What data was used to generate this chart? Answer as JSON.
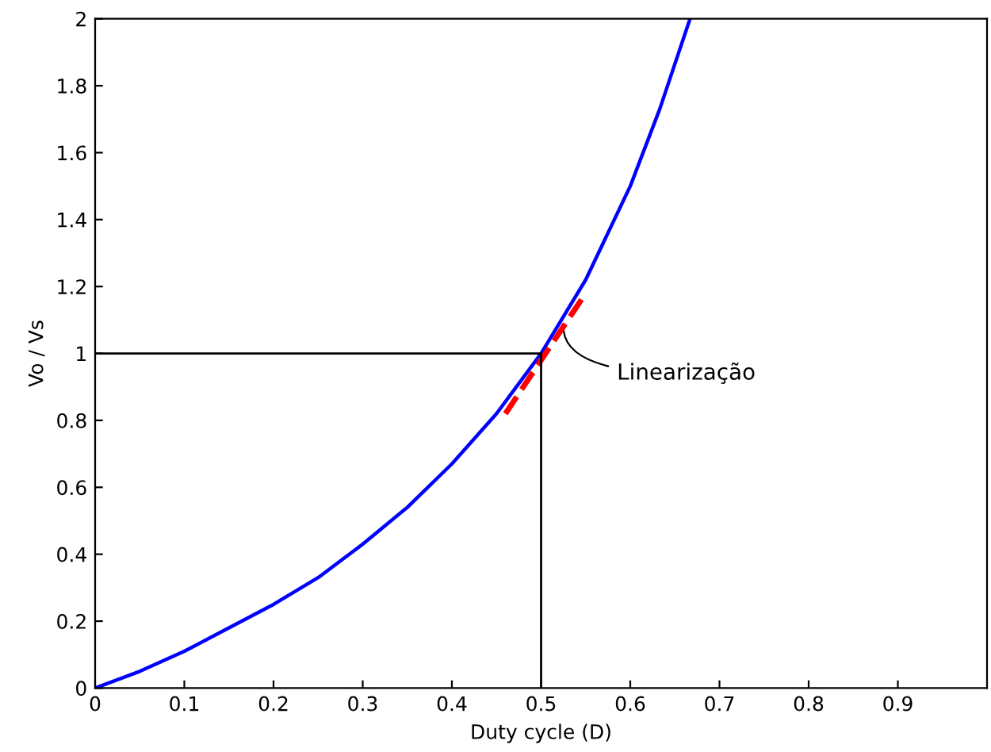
{
  "chart_data": {
    "type": "line",
    "xlabel": "Duty cycle (D)",
    "ylabel": "Vo / Vs",
    "xlim": [
      0,
      1
    ],
    "ylim": [
      0,
      2
    ],
    "xticks": [
      0,
      0.1,
      0.2,
      0.3,
      0.4,
      0.5,
      0.6,
      0.7,
      0.8,
      0.9
    ],
    "yticks": [
      0,
      0.2,
      0.4,
      0.6,
      0.8,
      1,
      1.2,
      1.4,
      1.6,
      1.8,
      2
    ],
    "grid": false,
    "legend": false,
    "marker": "none",
    "series": [
      {
        "color": "#0000ff",
        "line_style": "solid",
        "x": [
          0,
          0.05,
          0.1,
          0.15,
          0.2,
          0.25,
          0.3,
          0.35,
          0.4,
          0.45,
          0.5,
          0.55,
          0.6,
          0.633,
          0.667
        ],
        "values": [
          0,
          0.05,
          0.11,
          0.18,
          0.25,
          0.33,
          0.43,
          0.54,
          0.67,
          0.82,
          1.0,
          1.22,
          1.5,
          1.73,
          2.0
        ]
      },
      {
        "color": "#ff0000",
        "line_style": "dashed",
        "x": [
          0.46,
          0.55
        ],
        "values": [
          0.82,
          1.18
        ]
      },
      {
        "color": "#000000",
        "line_style": "solid",
        "x": [
          0,
          0.5,
          0.5
        ],
        "values": [
          1,
          1,
          0
        ]
      }
    ],
    "annotations": [
      {
        "text": "Linearização",
        "x": 0.525,
        "y": 1.08
      }
    ]
  }
}
